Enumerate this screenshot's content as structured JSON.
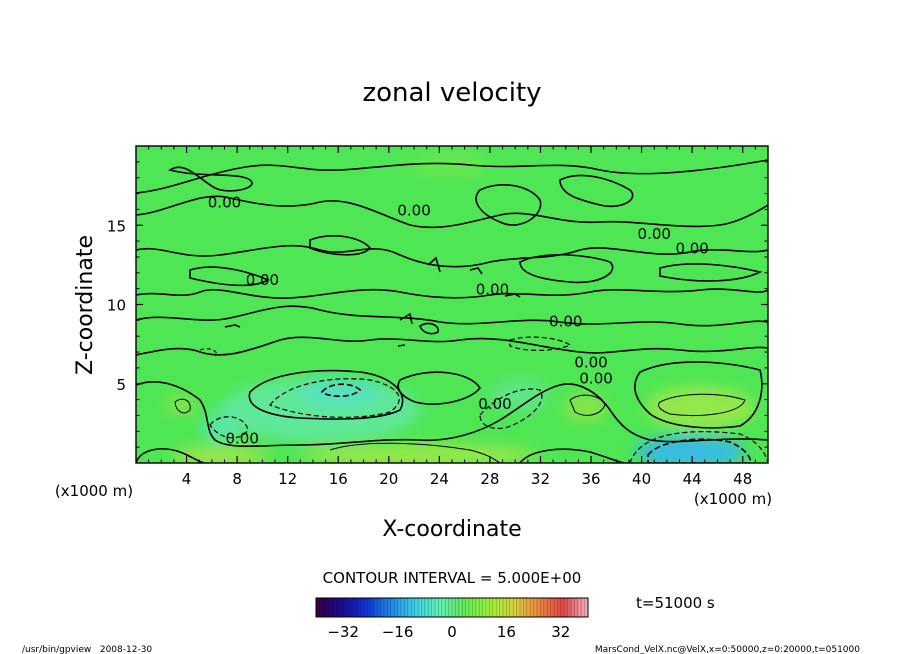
{
  "chart_data": {
    "type": "heatmap",
    "title": "zonal velocity",
    "xlabel": "X-coordinate",
    "ylabel": "Z-coordinate",
    "x_unit_label": "(x1000 m)",
    "z_unit_label": "(x1000 m)",
    "xlim": [
      0,
      50
    ],
    "ylim": [
      0,
      20
    ],
    "x_ticks": [
      4,
      8,
      12,
      16,
      20,
      24,
      28,
      32,
      36,
      40,
      44,
      48
    ],
    "y_ticks": [
      5,
      10,
      15
    ],
    "contour_interval_text": "CONTOUR INTERVAL = 5.000E+00",
    "contour_labels": [
      {
        "text": "0.00",
        "x": 7.0,
        "z": 16.5
      },
      {
        "text": "0.00",
        "x": 22.0,
        "z": 16.0
      },
      {
        "text": "0.00",
        "x": 41.0,
        "z": 14.5
      },
      {
        "text": "0.00",
        "x": 44.0,
        "z": 13.6
      },
      {
        "text": "0.00",
        "x": 10.0,
        "z": 11.6
      },
      {
        "text": "0.00",
        "x": 28.2,
        "z": 11.0
      },
      {
        "text": "0.00",
        "x": 34.0,
        "z": 9.0
      },
      {
        "text": "0.00",
        "x": 36.0,
        "z": 6.4
      },
      {
        "text": "0.00",
        "x": 36.4,
        "z": 5.4
      },
      {
        "text": "0.00",
        "x": 28.4,
        "z": 3.8
      },
      {
        "text": "0.00",
        "x": 8.4,
        "z": 1.6
      }
    ],
    "colorbar": {
      "ticks": [
        -32,
        -16,
        0,
        16,
        32
      ],
      "range": [
        -40,
        40
      ],
      "colors": [
        "#3a0044",
        "#1a0a8a",
        "#1030d0",
        "#1e86e6",
        "#3fd0ea",
        "#5ff0b0",
        "#62ec5a",
        "#9af03a",
        "#d8d040",
        "#e88a3a",
        "#e04646",
        "#f0b0c0"
      ]
    },
    "time_label": "t=51000 s",
    "features": [
      {
        "type": "min",
        "x": 16.0,
        "z": 4.3,
        "value": -10
      },
      {
        "type": "min",
        "x": 6.8,
        "z": 2.2,
        "value": -5
      },
      {
        "type": "min",
        "x": 44.5,
        "z": 0.8,
        "value": -15
      },
      {
        "type": "max",
        "x": 45.0,
        "z": 3.2,
        "value": 10
      },
      {
        "type": "max",
        "x": 22.0,
        "z": 0.8,
        "value": 10
      },
      {
        "type": "max",
        "x": 4.0,
        "z": 3.5,
        "value": 5
      }
    ]
  },
  "footer": {
    "left": "/usr/bin/gpview   2008-12-30",
    "right": "MarsCond_VelX.nc@VelX,x=0:50000,z=0:20000,t=051000"
  }
}
